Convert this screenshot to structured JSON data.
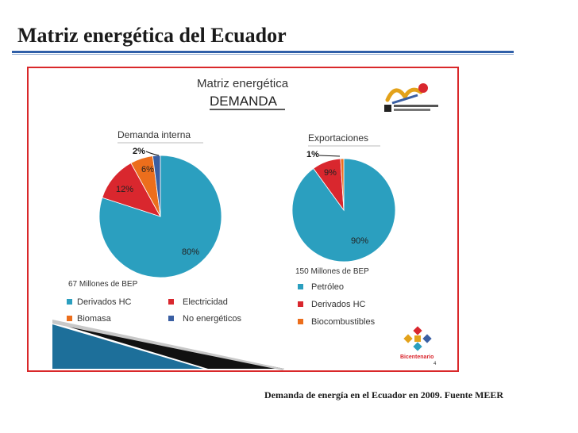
{
  "page": {
    "title": "Matriz energética del Ecuador",
    "caption": "Demanda de energía en el Ecuador en 2009. Fuente MEER"
  },
  "slide": {
    "title_line1": "Matriz energética",
    "title_line2": "DEMANDA",
    "bicentenario_label": "Bicentenario",
    "page_number": "4"
  },
  "colors": {
    "teal": "#2b9fbf",
    "red": "#d9272e",
    "orange": "#ec6e1c",
    "blue": "#3a5fa3",
    "frame": "#d9282a"
  },
  "chart_data": [
    {
      "type": "pie",
      "title": "Demanda interna",
      "total_label": "67 Millones de BEP",
      "slices": [
        {
          "name": "Derivados HC",
          "value": 80,
          "label": "80%",
          "color": "#2b9fbf"
        },
        {
          "name": "Electricidad",
          "value": 12,
          "label": "12%",
          "color": "#d9272e"
        },
        {
          "name": "Biomasa",
          "value": 6,
          "label": "6%",
          "color": "#ec6e1c"
        },
        {
          "name": "No energéticos",
          "value": 2,
          "label": "2%",
          "color": "#3a5fa3"
        }
      ],
      "legend": [
        {
          "label": "Derivados HC",
          "color": "#2b9fbf"
        },
        {
          "label": "Electricidad",
          "color": "#d9272e"
        },
        {
          "label": "Biomasa",
          "color": "#ec6e1c"
        },
        {
          "label": "No energéticos",
          "color": "#3a5fa3"
        }
      ]
    },
    {
      "type": "pie",
      "title": "Exportaciones",
      "total_label": "150 Millones de BEP",
      "slices": [
        {
          "name": "Petróleo",
          "value": 90,
          "label": "90%",
          "color": "#2b9fbf"
        },
        {
          "name": "Derivados HC",
          "value": 9,
          "label": "9%",
          "color": "#d9272e"
        },
        {
          "name": "Biocombustibles",
          "value": 1,
          "label": "1%",
          "color": "#ec6e1c"
        }
      ],
      "legend": [
        {
          "label": "Petróleo",
          "color": "#2b9fbf"
        },
        {
          "label": "Derivados HC",
          "color": "#d9272e"
        },
        {
          "label": "Biocombustibles",
          "color": "#ec6e1c"
        }
      ]
    }
  ]
}
